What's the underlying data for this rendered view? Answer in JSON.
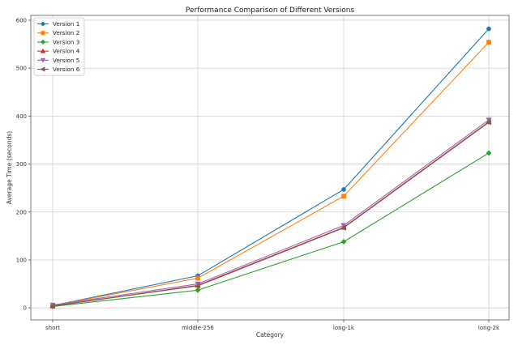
{
  "chart_data": {
    "type": "line",
    "title": "Performance Comparison of Different Versions",
    "xlabel": "Category",
    "ylabel": "Average Time (seconds)",
    "categories": [
      "short",
      "middle-256",
      "long-1k",
      "long-2k"
    ],
    "ylim": [
      -25,
      610
    ],
    "yticks": [
      0,
      100,
      200,
      300,
      400,
      500,
      600
    ],
    "grid": true,
    "legend_position": "top-left",
    "series": [
      {
        "name": "Version 1",
        "color": "#1f77b4",
        "marker": "circle",
        "values": [
          5,
          67,
          247,
          582
        ]
      },
      {
        "name": "Version 2",
        "color": "#ff7f0e",
        "marker": "square",
        "values": [
          5,
          62,
          233,
          554
        ]
      },
      {
        "name": "Version 3",
        "color": "#2ca02c",
        "marker": "diamond",
        "values": [
          3,
          37,
          138,
          323
        ]
      },
      {
        "name": "Version 4",
        "color": "#d62728",
        "marker": "triangle-up",
        "values": [
          4,
          47,
          168,
          388
        ]
      },
      {
        "name": "Version 5",
        "color": "#9467bd",
        "marker": "triangle-down",
        "values": [
          6,
          50,
          172,
          392
        ]
      },
      {
        "name": "Version 6",
        "color": "#8c564b",
        "marker": "triangle-left",
        "values": [
          4,
          46,
          167,
          387
        ]
      }
    ]
  }
}
